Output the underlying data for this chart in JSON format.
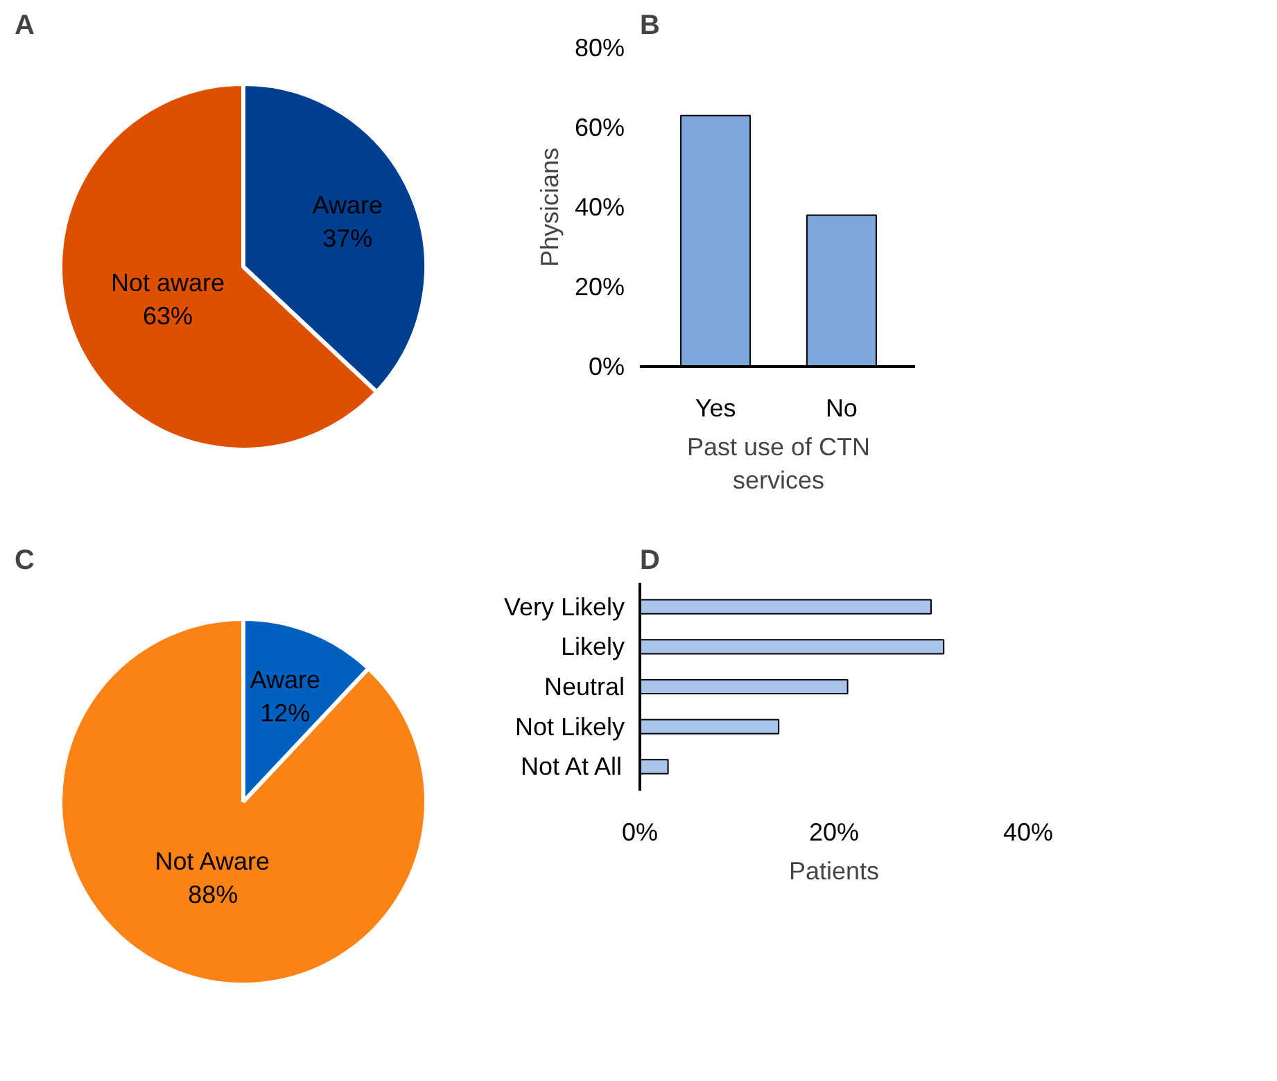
{
  "chart_data": [
    {
      "type": "pie",
      "title": "A",
      "categories": [
        "Aware",
        "Not aware"
      ],
      "values": [
        37,
        63
      ],
      "value_labels": [
        "37%",
        "63%"
      ],
      "colors": [
        "#003f8f",
        "#dd5000"
      ]
    },
    {
      "type": "bar",
      "title": "B",
      "categories": [
        "Yes",
        "No"
      ],
      "values": [
        63,
        38
      ],
      "color": "#7da7db",
      "ylim": [
        0,
        80
      ],
      "yticks": [
        {
          "value": 0,
          "label": "0%"
        },
        {
          "value": 20,
          "label": "20%"
        },
        {
          "value": 40,
          "label": "40%"
        },
        {
          "value": 60,
          "label": "60%"
        },
        {
          "value": 80,
          "label": "80%"
        }
      ],
      "ylabel": "Physicians",
      "xlabel": "Past use of CTN services",
      "grid": false
    },
    {
      "type": "pie",
      "title": "C",
      "categories": [
        "Aware",
        "Not Aware"
      ],
      "values": [
        12,
        88
      ],
      "value_labels": [
        "12%",
        "88%"
      ],
      "colors": [
        "#0060bf",
        "#fb8214"
      ]
    },
    {
      "type": "bar",
      "title": "D",
      "orientation": "horizontal",
      "categories": [
        "Very Likely",
        "Likely",
        "Neutral",
        "Not Likely",
        "Not At All"
      ],
      "values": [
        30,
        31.3,
        21.4,
        14.3,
        2.9
      ],
      "color": "#a9c4ea",
      "xlim": [
        0,
        40
      ],
      "xticks": [
        {
          "value": 0,
          "label": "0%"
        },
        {
          "value": 20,
          "label": "20%"
        },
        {
          "value": 40,
          "label": "40%"
        }
      ],
      "xlabel": "Patients",
      "grid": false
    }
  ]
}
